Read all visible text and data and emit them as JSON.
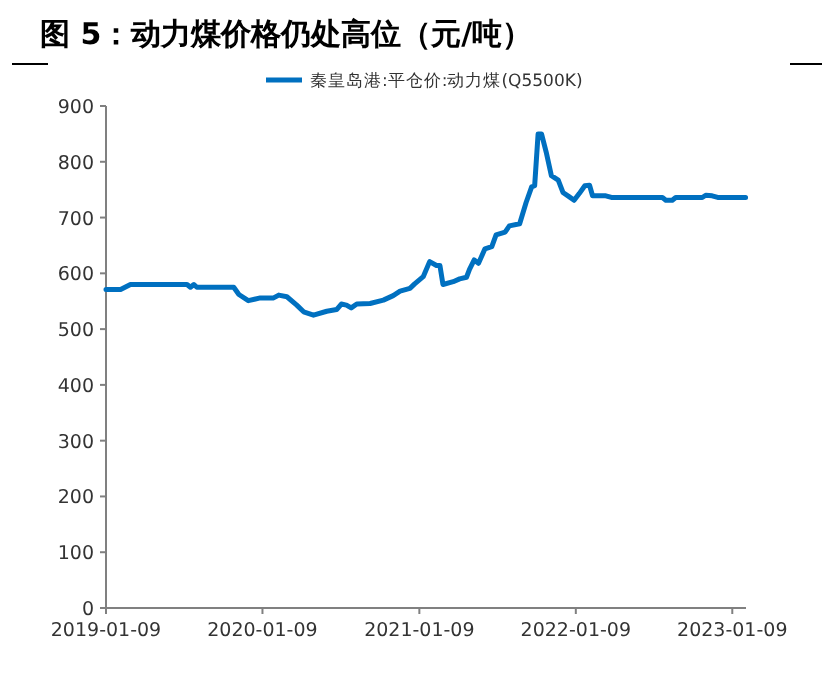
{
  "chart_data": {
    "type": "line",
    "title": "图 5：动力煤价格仍处高位（元/吨）",
    "legend": "top",
    "grid": false,
    "marker": "none",
    "line_style": "solid",
    "xlim": [
      "2019-01-09",
      "2023-02-10"
    ],
    "xticks": [
      "2019-01-09",
      "2020-01-09",
      "2021-01-09",
      "2022-01-09",
      "2023-01-09"
    ],
    "ylim": [
      0,
      900
    ],
    "yticks": [
      0,
      100,
      200,
      300,
      400,
      500,
      600,
      700,
      800,
      900
    ],
    "x": [
      "2019-01-09",
      "2019-02-12",
      "2019-03-07",
      "2019-07-17",
      "2019-07-25",
      "2019-08-02",
      "2019-08-09",
      "2019-11-03",
      "2019-11-15",
      "2019-12-07",
      "2020-01-04",
      "2020-02-04",
      "2020-02-16",
      "2020-03-06",
      "2020-03-29",
      "2020-04-14",
      "2020-05-07",
      "2020-06-07",
      "2020-06-30",
      "2020-07-11",
      "2020-07-23",
      "2020-08-03",
      "2020-08-16",
      "2020-09-16",
      "2020-10-17",
      "2020-11-09",
      "2020-11-25",
      "2020-12-18",
      "2020-12-29",
      "2021-01-18",
      "2021-02-02",
      "2021-02-18",
      "2021-02-26",
      "2021-03-05",
      "2021-03-29",
      "2021-04-13",
      "2021-04-29",
      "2021-05-06",
      "2021-05-17",
      "2021-05-27",
      "2021-06-11",
      "2021-06-27",
      "2021-07-07",
      "2021-07-28",
      "2021-08-07",
      "2021-08-31",
      "2021-09-15",
      "2021-09-28",
      "2021-10-05",
      "2021-10-13",
      "2021-10-21",
      "2021-11-01",
      "2021-11-13",
      "2021-11-29",
      "2021-12-10",
      "2021-12-25",
      "2022-01-05",
      "2022-01-17",
      "2022-01-30",
      "2022-02-10",
      "2022-02-17",
      "2022-03-20",
      "2022-04-02",
      "2022-07-30",
      "2022-08-07",
      "2022-08-22",
      "2022-08-30",
      "2022-10-31",
      "2022-11-08",
      "2022-11-23",
      "2022-12-06",
      "2023-02-09"
    ],
    "series": [
      {
        "name": "秦皇岛港:平仓价:动力煤(Q5500K)",
        "color": "#0070c0",
        "values": [
          571,
          571,
          580,
          580,
          575,
          580,
          575,
          575,
          562,
          551,
          556,
          556,
          561,
          558,
          543,
          531,
          525,
          532,
          535,
          545,
          543,
          538,
          545,
          546,
          552,
          560,
          568,
          573,
          581,
          594,
          621,
          614,
          614,
          580,
          585,
          590,
          593,
          607,
          624,
          618,
          644,
          648,
          669,
          674,
          685,
          689,
          727,
          755,
          757,
          850,
          850,
          817,
          775,
          767,
          745,
          737,
          731,
          743,
          757,
          758,
          739,
          739,
          736,
          736,
          731,
          731,
          736,
          736,
          740,
          739,
          736,
          736
        ]
      }
    ]
  }
}
